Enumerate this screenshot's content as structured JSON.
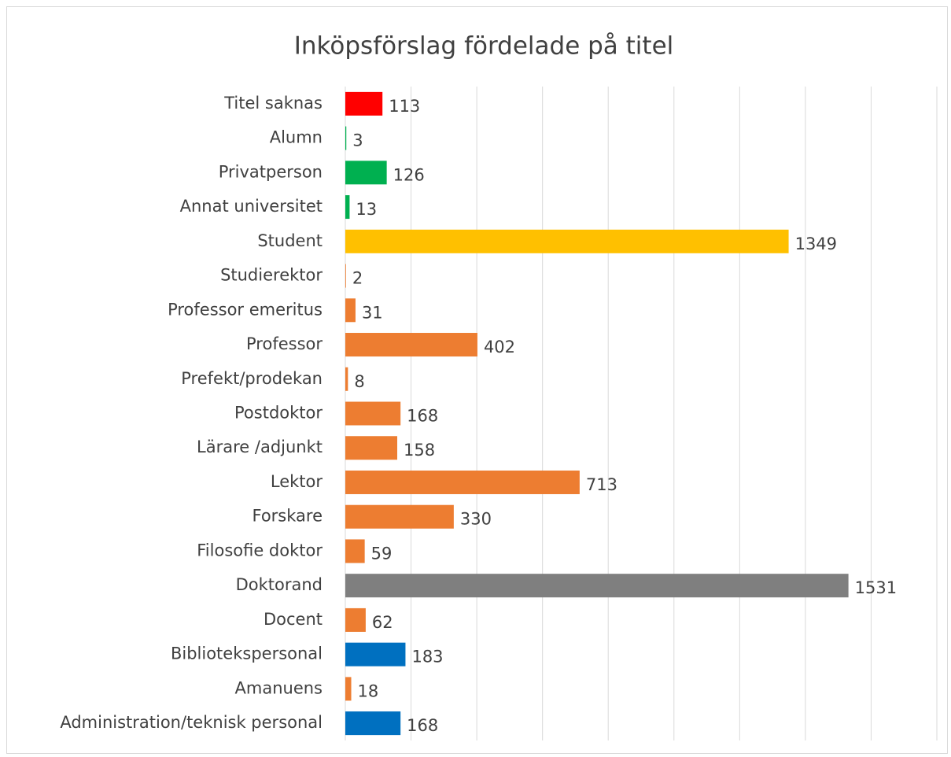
{
  "chart_data": {
    "type": "barh",
    "title": "Inköpsförslag fördelade på titel",
    "categories": [
      "Titel saknas",
      "Alumn",
      "Privatperson",
      "Annat universitet",
      "Student",
      "Studierektor",
      "Professor emeritus",
      "Professor",
      "Prefekt/prodekan",
      "Postdoktor",
      "Lärare /adjunkt",
      "Lektor",
      "Forskare",
      "Filosofie doktor",
      "Doktorand",
      "Docent",
      "Bibliotekspersonal",
      "Amanuens",
      "Administration/teknisk personal"
    ],
    "values": [
      113,
      3,
      126,
      13,
      1349,
      2,
      31,
      402,
      8,
      168,
      158,
      713,
      330,
      59,
      1531,
      62,
      183,
      18,
      168
    ],
    "colors": [
      "#ff0000",
      "#00b050",
      "#00b050",
      "#00b050",
      "#ffc000",
      "#ed7d31",
      "#ed7d31",
      "#ed7d31",
      "#ed7d31",
      "#ed7d31",
      "#ed7d31",
      "#ed7d31",
      "#ed7d31",
      "#ed7d31",
      "#7f7f7f",
      "#ed7d31",
      "#0070c0",
      "#ed7d31",
      "#0070c0"
    ],
    "xlim": [
      0,
      1800
    ],
    "xticks": [
      0,
      200,
      400,
      600,
      800,
      1000,
      1200,
      1400,
      1600,
      1800
    ],
    "grid": true
  }
}
